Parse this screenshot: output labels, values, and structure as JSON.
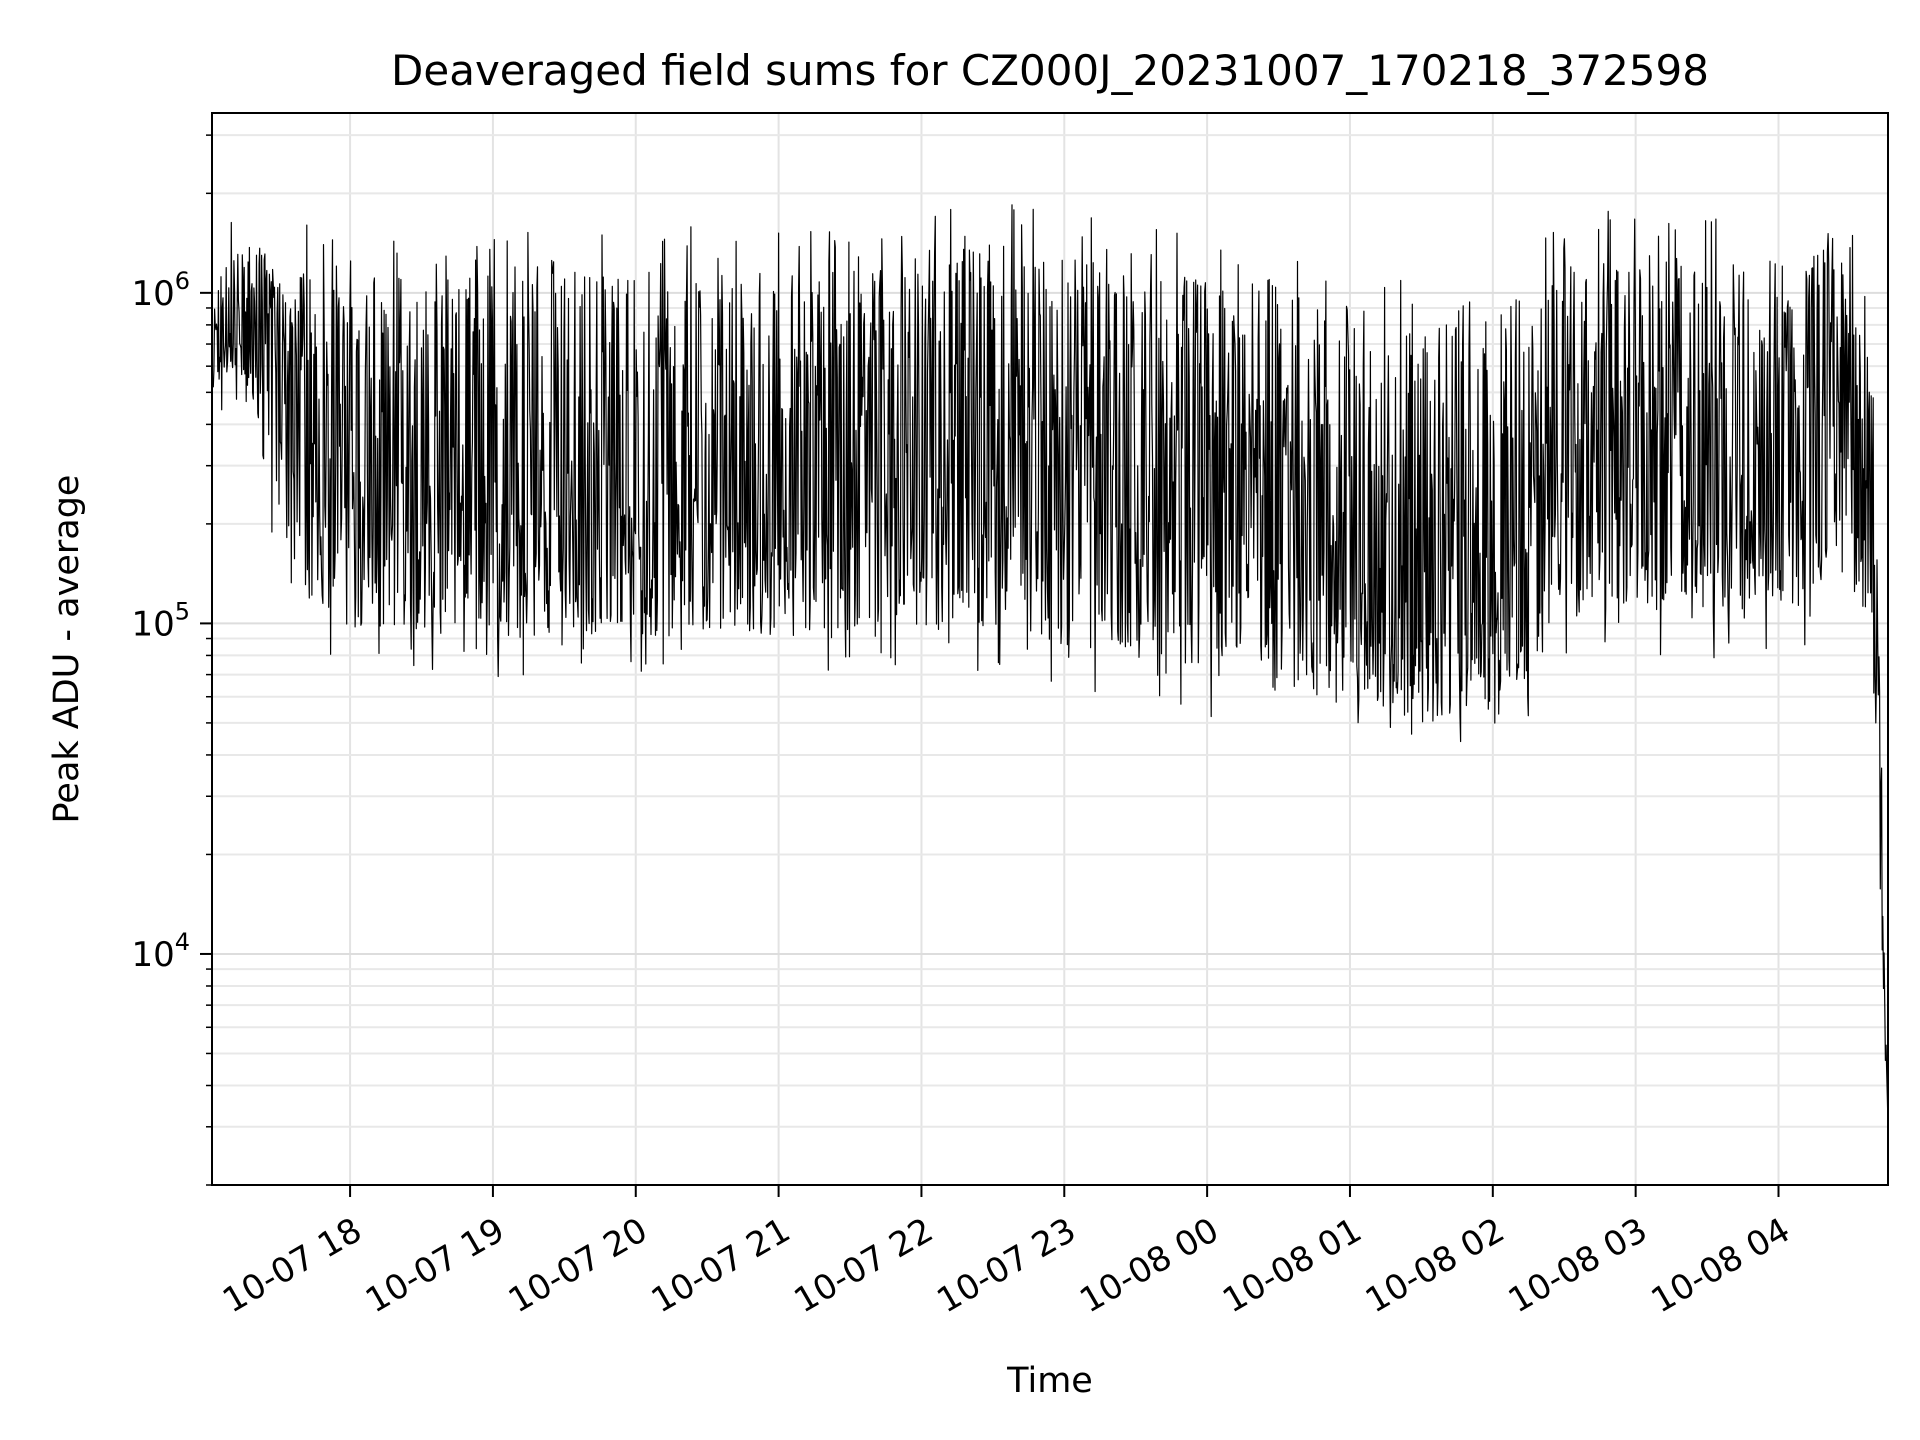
{
  "chart_data": {
    "type": "line",
    "title": "Deaveraged field sums for CZ000J_20231007_170218_372598",
    "xlabel": "Time",
    "ylabel": "Peak ADU - average",
    "yscale": "log",
    "ylim": [
      2000,
      3500000
    ],
    "xlim": [
      "2023-10-07 17:02",
      "2023-10-08 04:46"
    ],
    "grid": true,
    "line_color": "#000000",
    "x_ticks": [
      "10-07 18",
      "10-07 19",
      "10-07 20",
      "10-07 21",
      "10-07 22",
      "10-07 23",
      "10-08 00",
      "10-08 01",
      "10-08 02",
      "10-08 03",
      "10-08 04"
    ],
    "y_ticks": [
      {
        "base": "10",
        "exp": "4",
        "value": 10000
      },
      {
        "base": "10",
        "exp": "5",
        "value": 100000
      },
      {
        "base": "10",
        "exp": "6",
        "value": 1000000
      }
    ],
    "series": [
      {
        "x": [
          "2023-10-07 17:02",
          "2023-10-07 17:10",
          "2023-10-07 17:20",
          "2023-10-07 17:30",
          "2023-10-07 17:40",
          "2023-10-07 17:50",
          "2023-10-07 18:00",
          "2023-10-07 18:15",
          "2023-10-07 18:30",
          "2023-10-07 18:45",
          "2023-10-07 19:00",
          "2023-10-07 19:15",
          "2023-10-07 19:30",
          "2023-10-07 19:45",
          "2023-10-07 20:00",
          "2023-10-07 20:15",
          "2023-10-07 20:30",
          "2023-10-07 20:45",
          "2023-10-07 21:00",
          "2023-10-07 21:15",
          "2023-10-07 21:30",
          "2023-10-07 21:45",
          "2023-10-07 22:00",
          "2023-10-07 22:15",
          "2023-10-07 22:30",
          "2023-10-07 22:45",
          "2023-10-07 23:00",
          "2023-10-07 23:15",
          "2023-10-07 23:30",
          "2023-10-07 23:45",
          "2023-10-08 00:00",
          "2023-10-08 00:15",
          "2023-10-08 00:30",
          "2023-10-08 00:45",
          "2023-10-08 01:00",
          "2023-10-08 01:15",
          "2023-10-08 01:30",
          "2023-10-08 01:45",
          "2023-10-08 02:00",
          "2023-10-08 02:15",
          "2023-10-08 02:30",
          "2023-10-08 02:45",
          "2023-10-08 03:00",
          "2023-10-08 03:15",
          "2023-10-08 03:30",
          "2023-10-08 03:45",
          "2023-10-08 04:00",
          "2023-10-08 04:15",
          "2023-10-08 04:30",
          "2023-10-08 04:40",
          "2023-10-08 04:46"
        ],
        "median": [
          600000,
          750000,
          900000,
          800000,
          450000,
          350000,
          300000,
          280000,
          260000,
          250000,
          250000,
          255000,
          250000,
          240000,
          240000,
          250000,
          260000,
          250000,
          240000,
          245000,
          250000,
          270000,
          280000,
          300000,
          330000,
          320000,
          300000,
          290000,
          280000,
          260000,
          220000,
          200000,
          180000,
          160000,
          140000,
          130000,
          120000,
          120000,
          130000,
          180000,
          250000,
          300000,
          310000,
          300000,
          280000,
          270000,
          280000,
          300000,
          400000,
          200000,
          3000
        ],
        "high": [
          900000,
          1500000,
          1400000,
          1300000,
          1200000,
          1200000,
          1200000,
          1200000,
          1250000,
          1200000,
          1200000,
          1250000,
          1200000,
          1150000,
          1150000,
          1200000,
          1200000,
          1150000,
          1150000,
          1150000,
          1200000,
          1250000,
          1300000,
          1350000,
          1400000,
          1350000,
          1300000,
          1250000,
          1200000,
          1150000,
          1100000,
          1050000,
          1000000,
          950000,
          900000,
          850000,
          800000,
          800000,
          850000,
          1000000,
          1200000,
          1300000,
          1350000,
          1300000,
          1250000,
          1250000,
          1300000,
          1350000,
          1500000,
          500000,
          8000
        ],
        "low": [
          500000,
          600000,
          400000,
          200000,
          120000,
          100000,
          95000,
          95000,
          95000,
          90000,
          90000,
          90000,
          95000,
          92000,
          90000,
          90000,
          95000,
          92000,
          90000,
          90000,
          90000,
          92000,
          95000,
          95000,
          95000,
          92000,
          85000,
          80000,
          78000,
          75000,
          70000,
          65000,
          60000,
          58000,
          55000,
          52000,
          50000,
          50000,
          55000,
          70000,
          100000,
          110000,
          110000,
          105000,
          100000,
          98000,
          100000,
          105000,
          200000,
          60000,
          2700
        ]
      }
    ]
  }
}
